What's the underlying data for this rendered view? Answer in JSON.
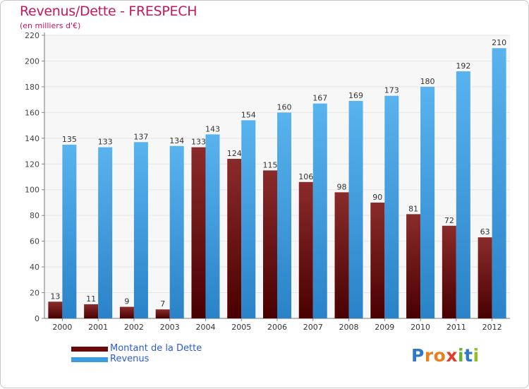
{
  "header": {
    "title": "Revenus/Dette - FRESPECH",
    "subtitle": "(en milliers d'€)"
  },
  "legend": {
    "items": [
      {
        "label": "Montant de la Dette",
        "color": "#6b0a0a"
      },
      {
        "label": "Revenus",
        "color": "#3b9de0"
      }
    ]
  },
  "logo": {
    "letters": [
      "P",
      "r",
      "o",
      "x",
      "i",
      "t",
      "i"
    ],
    "colors": [
      "#2f78c8",
      "#e8801e",
      "#e8801e",
      "#e33b2a",
      "#69b42c",
      "#2f78c8",
      "#8fbf25"
    ]
  },
  "chart_data": {
    "type": "bar",
    "categories": [
      "2000",
      "2001",
      "2002",
      "2003",
      "2004",
      "2005",
      "2006",
      "2007",
      "2008",
      "2009",
      "2010",
      "2011",
      "2012"
    ],
    "series": [
      {
        "name": "Montant de la Dette",
        "color": "#6b0a0a",
        "values": [
          13,
          11,
          9,
          7,
          133,
          124,
          115,
          106,
          98,
          90,
          81,
          72,
          63
        ]
      },
      {
        "name": "Revenus",
        "color": "#3b9de0",
        "values": [
          135,
          133,
          137,
          134,
          143,
          154,
          160,
          167,
          169,
          173,
          180,
          192,
          210
        ]
      }
    ],
    "title": "Revenus/Dette - FRESPECH",
    "ylabel": "(en milliers d'€)",
    "ylim": [
      0,
      220
    ],
    "yticks": [
      0,
      20,
      40,
      60,
      80,
      100,
      120,
      140,
      160,
      180,
      200,
      220
    ],
    "grid": true,
    "legend_position": "bottom-left"
  }
}
